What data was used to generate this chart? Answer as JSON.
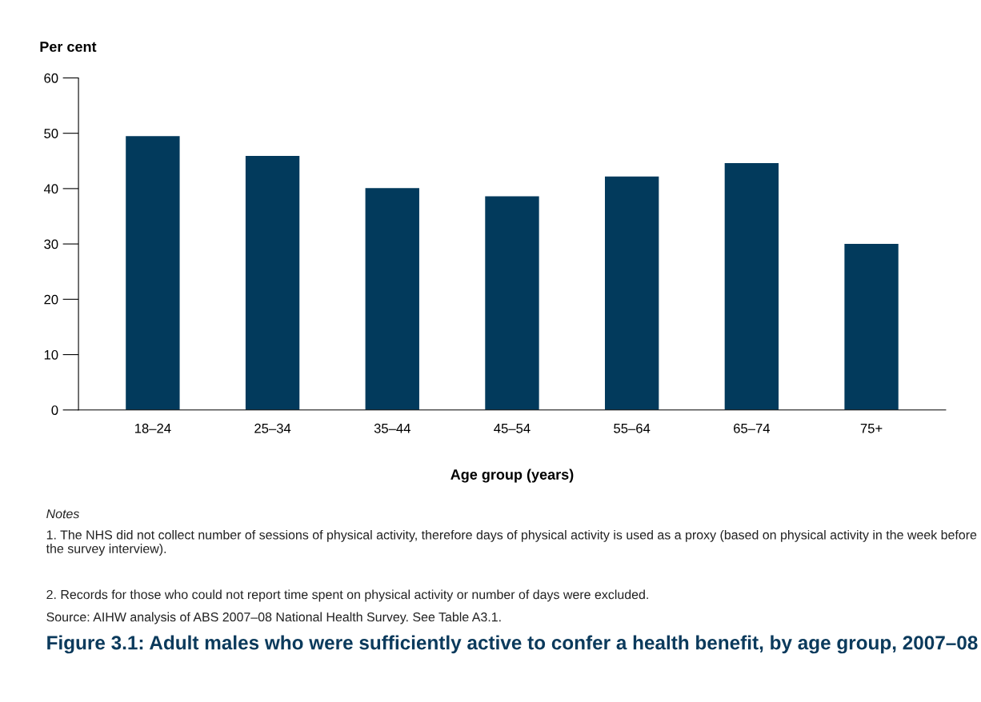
{
  "chart_data": {
    "type": "bar",
    "title": "Figure 3.1: Adult males who were sufficiently active to confer a health benefit, by age group, 2007–08",
    "xlabel": "Age group (years)",
    "ylabel": "Per cent",
    "categories": [
      "18–24",
      "25–34",
      "35–44",
      "45–54",
      "55–64",
      "65–74",
      "75+"
    ],
    "values": [
      49.5,
      45.9,
      40.1,
      38.6,
      42.2,
      44.6,
      30.0
    ],
    "color": "#023a5c",
    "ylim": [
      0,
      60
    ],
    "yticks": [
      0,
      10,
      20,
      30,
      40,
      50,
      60
    ],
    "grid": false,
    "legend": false,
    "annotations": [
      "Notes",
      "1. The NHS did not collect number of sessions of physical activity, therefore days of physical activity is used as a proxy (based on physical activity in the week before the survey interview).",
      "2. Records for those who could not report time spent on physical activity or number of days were excluded.",
      "Source: AIHW analysis of ABS 2007–08 National Health Survey. See Table A3.1."
    ]
  }
}
